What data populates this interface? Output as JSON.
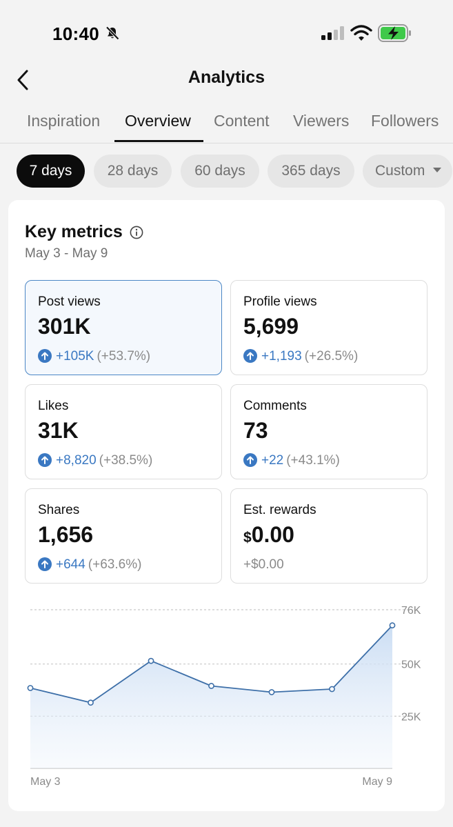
{
  "status": {
    "time": "10:40"
  },
  "nav": {
    "title": "Analytics"
  },
  "tabs": [
    {
      "label": "Inspiration"
    },
    {
      "label": "Overview"
    },
    {
      "label": "Content"
    },
    {
      "label": "Viewers"
    },
    {
      "label": "Followers"
    }
  ],
  "ranges": [
    {
      "label": "7 days"
    },
    {
      "label": "28 days"
    },
    {
      "label": "60 days"
    },
    {
      "label": "365 days"
    },
    {
      "label": "Custom"
    }
  ],
  "key_metrics": {
    "title": "Key metrics",
    "date_range": "May 3 - May 9",
    "metrics": [
      {
        "label": "Post views",
        "value": "301K",
        "delta": "+105K",
        "pct": "(+53.7%)"
      },
      {
        "label": "Profile views",
        "value": "5,699",
        "delta": "+1,193",
        "pct": "(+26.5%)"
      },
      {
        "label": "Likes",
        "value": "31K",
        "delta": "+8,820",
        "pct": "(+38.5%)"
      },
      {
        "label": "Comments",
        "value": "73",
        "delta": "+22",
        "pct": "(+43.1%)"
      },
      {
        "label": "Shares",
        "value": "1,656",
        "delta": "+644",
        "pct": "(+63.6%)"
      },
      {
        "label": "Est. rewards",
        "currency": "$",
        "value": "0.00",
        "delta": "+$0.00"
      }
    ]
  },
  "colors": {
    "accent": "#3a78c2",
    "line": "#3d6fa8",
    "chip_active": "#0c0c0c"
  },
  "chart_data": {
    "type": "area",
    "x": [
      "May 3",
      "May 4",
      "May 5",
      "May 6",
      "May 7",
      "May 8",
      "May 9"
    ],
    "values": [
      38500,
      31500,
      51500,
      39500,
      36500,
      38000,
      68500
    ],
    "x_tick_labels": [
      "May 3",
      "May 9"
    ],
    "y_ticks": [
      25000,
      50000,
      76000
    ],
    "y_tick_labels": [
      "25K",
      "50K",
      "76K"
    ],
    "ylim": [
      0,
      76000
    ],
    "grid": true
  }
}
